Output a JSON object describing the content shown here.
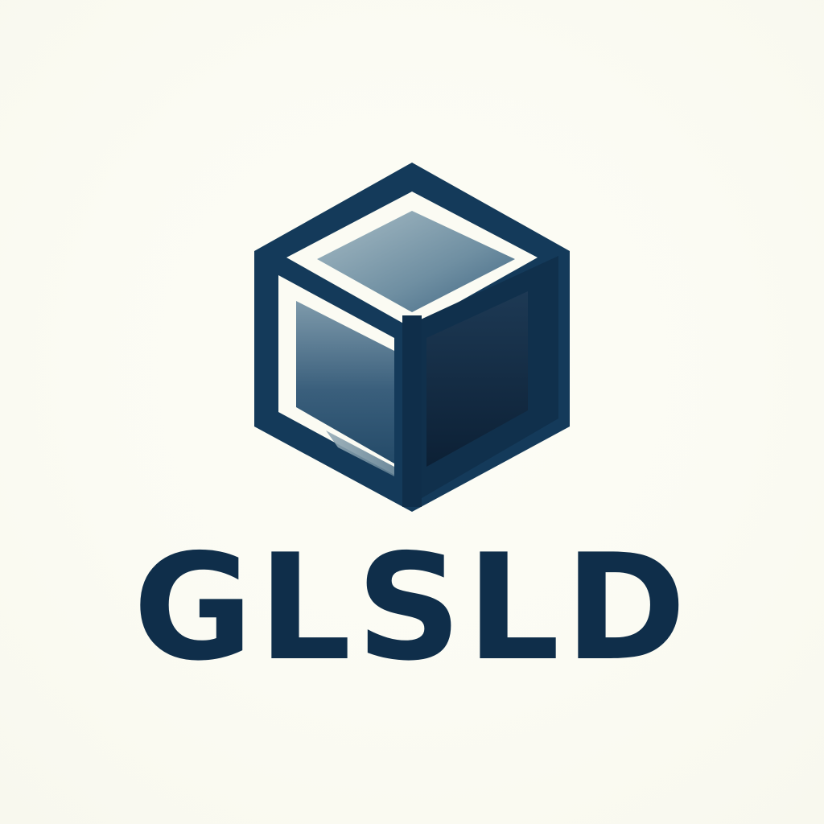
{
  "brand": {
    "name": "GLSLD",
    "logo_icon": "cube-icon"
  },
  "colors": {
    "background": "#fbfbf3",
    "primary_navy": "#0f2e4a",
    "cube_fill_light": "#8fa9b6",
    "cube_fill_dark": "#10263c"
  }
}
